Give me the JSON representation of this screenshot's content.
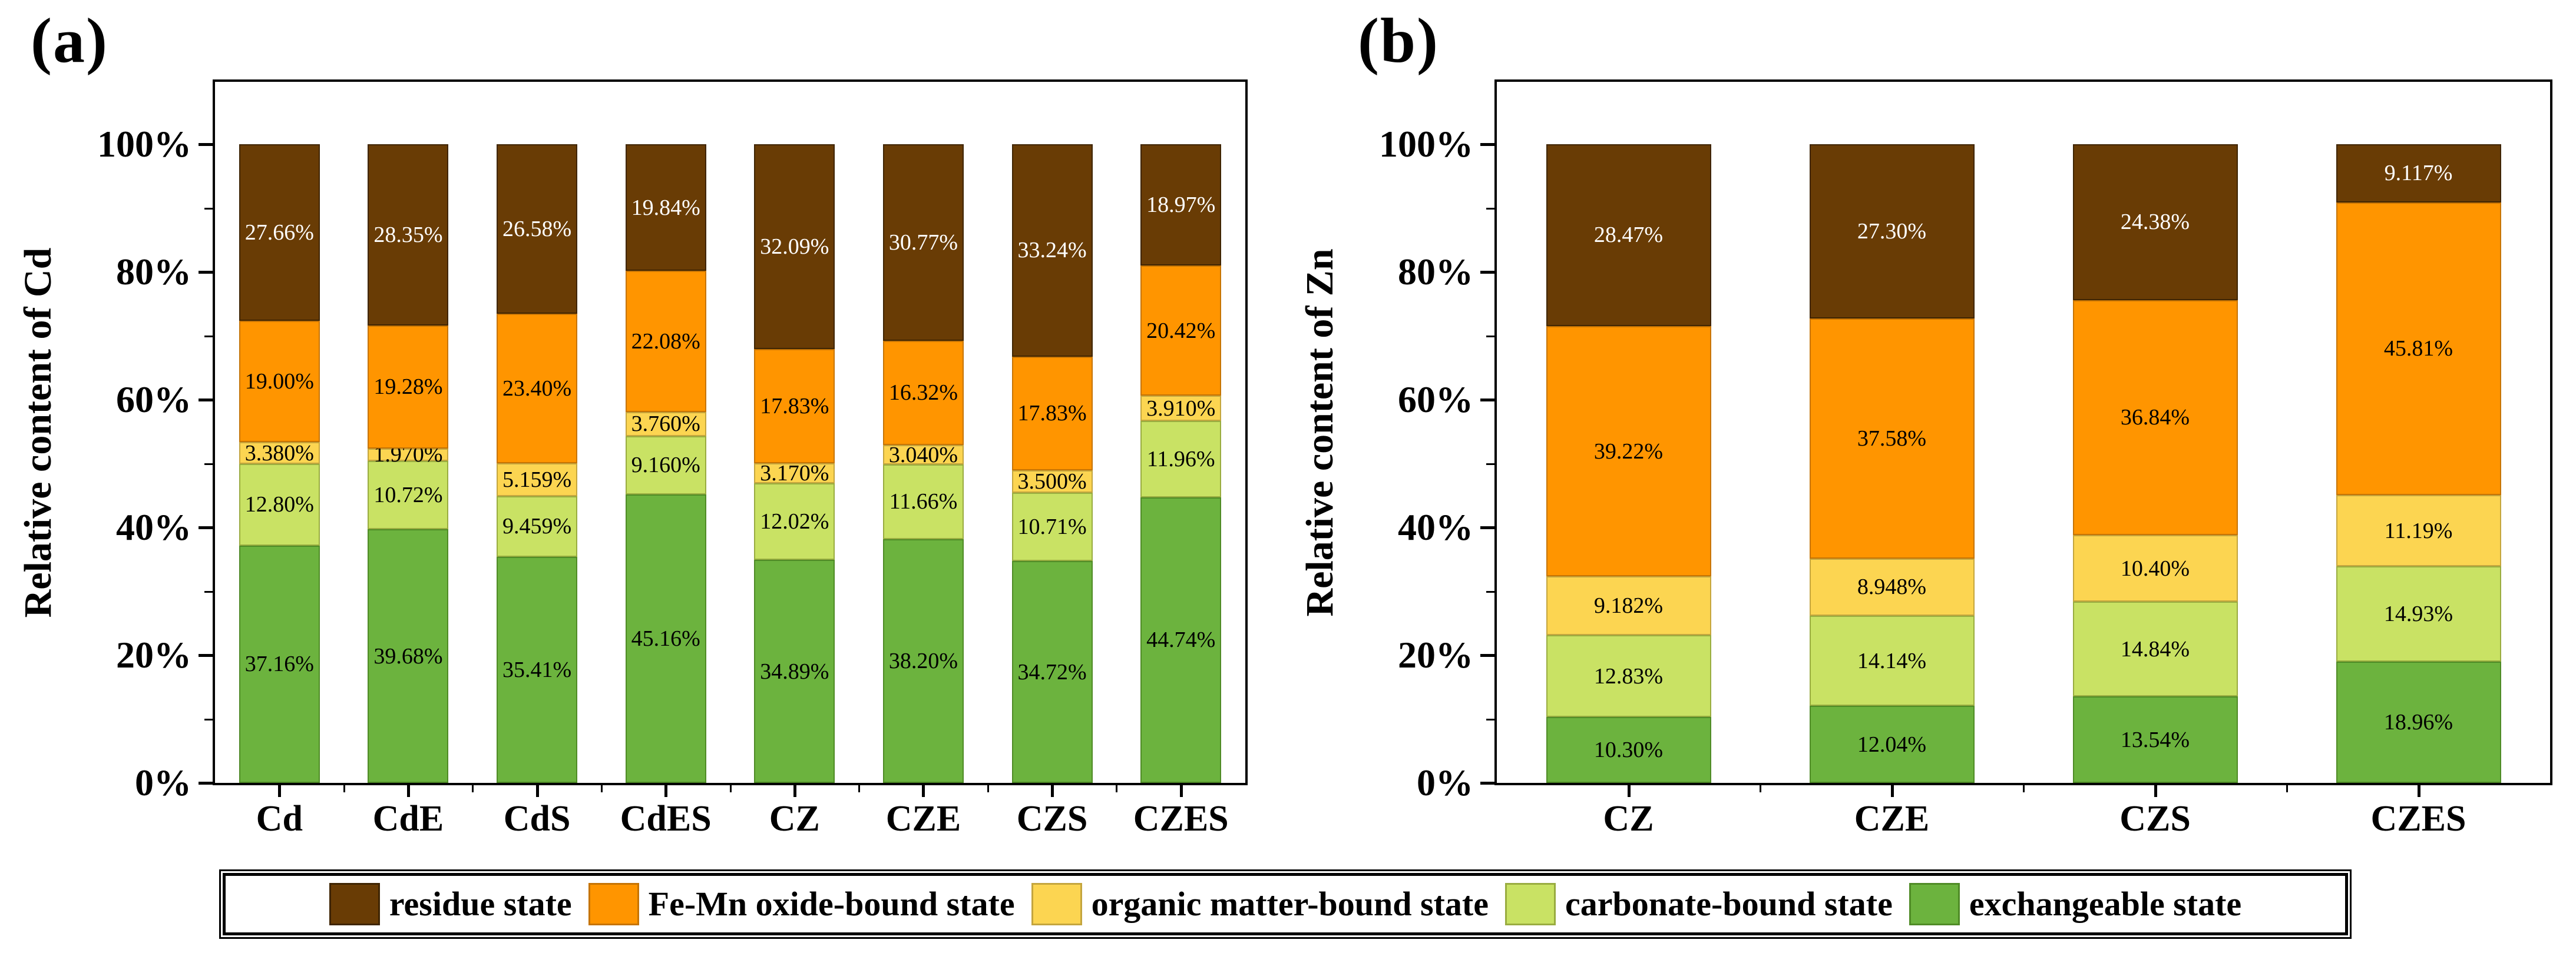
{
  "figure": {
    "background": "#ffffff",
    "panels": [
      {
        "panel_label": "(a)"
      },
      {
        "panel_label": "(b)"
      }
    ],
    "legend": {
      "items": [
        {
          "label": "residue state",
          "color": "#693C05",
          "border": "#3F2503"
        },
        {
          "label": "Fe-Mn oxide-bound state",
          "color": "#FF9500",
          "border": "#C67404"
        },
        {
          "label": "organic matter-bound state",
          "color": "#FCD551",
          "border": "#C4A53E"
        },
        {
          "label": "carbonate-bound state",
          "color": "#C9E264",
          "border": "#99AC40"
        },
        {
          "label": "exchangeable state",
          "color": "#6CB33E",
          "border": "#4F8B26"
        }
      ]
    }
  },
  "chart_data": [
    {
      "type": "bar",
      "stacked": true,
      "panel_label": "(a)",
      "ylabel": "Relative content of Cd",
      "xlabel": "",
      "categories": [
        "Cd",
        "CdE",
        "CdS",
        "CdES",
        "CZ",
        "CZE",
        "CZS",
        "CZES"
      ],
      "yticks_major": [
        0,
        20,
        40,
        60,
        80,
        100
      ],
      "yticks_minor": [
        10,
        30,
        50,
        70,
        90
      ],
      "ytick_labels": [
        "0%",
        "20%",
        "40%",
        "60%",
        "80%",
        "100%"
      ],
      "ylim": [
        0,
        110
      ],
      "grid": false,
      "legend_position": "bottom-shared",
      "series": [
        {
          "name": "exchangeable state",
          "color": "#6CB33E",
          "border": "#4F8B26",
          "label_color": "#000000",
          "values": [
            37.16,
            39.68,
            35.41,
            45.16,
            34.89,
            38.2,
            34.72,
            44.74
          ],
          "labels": [
            "37.16%",
            "39.68%",
            "35.41%",
            "45.16%",
            "34.89%",
            "38.20%",
            "34.72%",
            "44.74%"
          ]
        },
        {
          "name": "carbonate-bound state",
          "color": "#C9E264",
          "border": "#99AC40",
          "label_color": "#000000",
          "values": [
            12.8,
            10.72,
            9.459,
            9.16,
            12.02,
            11.66,
            10.71,
            11.96
          ],
          "labels": [
            "12.80%",
            "10.72%",
            "9.459%",
            "9.160%",
            "12.02%",
            "11.66%",
            "10.71%",
            "11.96%"
          ]
        },
        {
          "name": "organic matter-bound state",
          "color": "#FCD551",
          "border": "#C4A53E",
          "label_color": "#000000",
          "values": [
            3.38,
            1.97,
            5.159,
            3.76,
            3.17,
            3.04,
            3.5,
            3.91
          ],
          "labels": [
            "3.380%",
            "1.970%",
            "5.159%",
            "3.760%",
            "3.170%",
            "3.040%",
            "3.500%",
            "3.910%"
          ]
        },
        {
          "name": "Fe-Mn oxide-bound state",
          "color": "#FF9500",
          "border": "#C67404",
          "label_color": "#000000",
          "values": [
            19.0,
            19.28,
            23.4,
            22.08,
            17.83,
            16.32,
            17.83,
            20.42
          ],
          "labels": [
            "19.00%",
            "19.28%",
            "23.40%",
            "22.08%",
            "17.83%",
            "16.32%",
            "17.83%",
            "20.42%"
          ]
        },
        {
          "name": "residue state",
          "color": "#693C05",
          "border": "#3F2503",
          "label_color": "#FFFFFF",
          "values": [
            27.66,
            28.35,
            26.58,
            19.84,
            32.09,
            30.77,
            33.24,
            18.97
          ],
          "labels": [
            "27.66%",
            "28.35%",
            "26.58%",
            "19.84%",
            "32.09%",
            "30.77%",
            "33.24%",
            "18.97%"
          ]
        }
      ]
    },
    {
      "type": "bar",
      "stacked": true,
      "panel_label": "(b)",
      "ylabel": "Relative content of Zn",
      "xlabel": "",
      "categories": [
        "CZ",
        "CZE",
        "CZS",
        "CZES"
      ],
      "yticks_major": [
        0,
        20,
        40,
        60,
        80,
        100
      ],
      "yticks_minor": [
        10,
        30,
        50,
        70,
        90
      ],
      "ytick_labels": [
        "0%",
        "20%",
        "40%",
        "60%",
        "80%",
        "100%"
      ],
      "ylim": [
        0,
        110
      ],
      "grid": false,
      "legend_position": "bottom-shared",
      "series": [
        {
          "name": "exchangeable state",
          "color": "#6CB33E",
          "border": "#4F8B26",
          "label_color": "#000000",
          "values": [
            10.3,
            12.04,
            13.54,
            18.96
          ],
          "labels": [
            "10.30%",
            "12.04%",
            "13.54%",
            "18.96%"
          ]
        },
        {
          "name": "carbonate-bound state",
          "color": "#C9E264",
          "border": "#99AC40",
          "label_color": "#000000",
          "values": [
            12.83,
            14.14,
            14.84,
            14.93
          ],
          "labels": [
            "12.83%",
            "14.14%",
            "14.84%",
            "14.93%"
          ]
        },
        {
          "name": "organic matter-bound state",
          "color": "#FCD551",
          "border": "#C4A53E",
          "label_color": "#000000",
          "values": [
            9.182,
            8.948,
            10.4,
            11.19
          ],
          "labels": [
            "9.182%",
            "8.948%",
            "10.40%",
            "11.19%"
          ]
        },
        {
          "name": "Fe-Mn oxide-bound state",
          "color": "#FF9500",
          "border": "#C67404",
          "label_color": "#000000",
          "values": [
            39.22,
            37.58,
            36.84,
            45.81
          ],
          "labels": [
            "39.22%",
            "37.58%",
            "36.84%",
            "45.81%"
          ]
        },
        {
          "name": "residue state",
          "color": "#693C05",
          "border": "#3F2503",
          "label_color": "#FFFFFF",
          "values": [
            28.47,
            27.3,
            24.38,
            9.117
          ],
          "labels": [
            "28.47%",
            "27.30%",
            "24.38%",
            "9.117%"
          ]
        }
      ]
    }
  ]
}
